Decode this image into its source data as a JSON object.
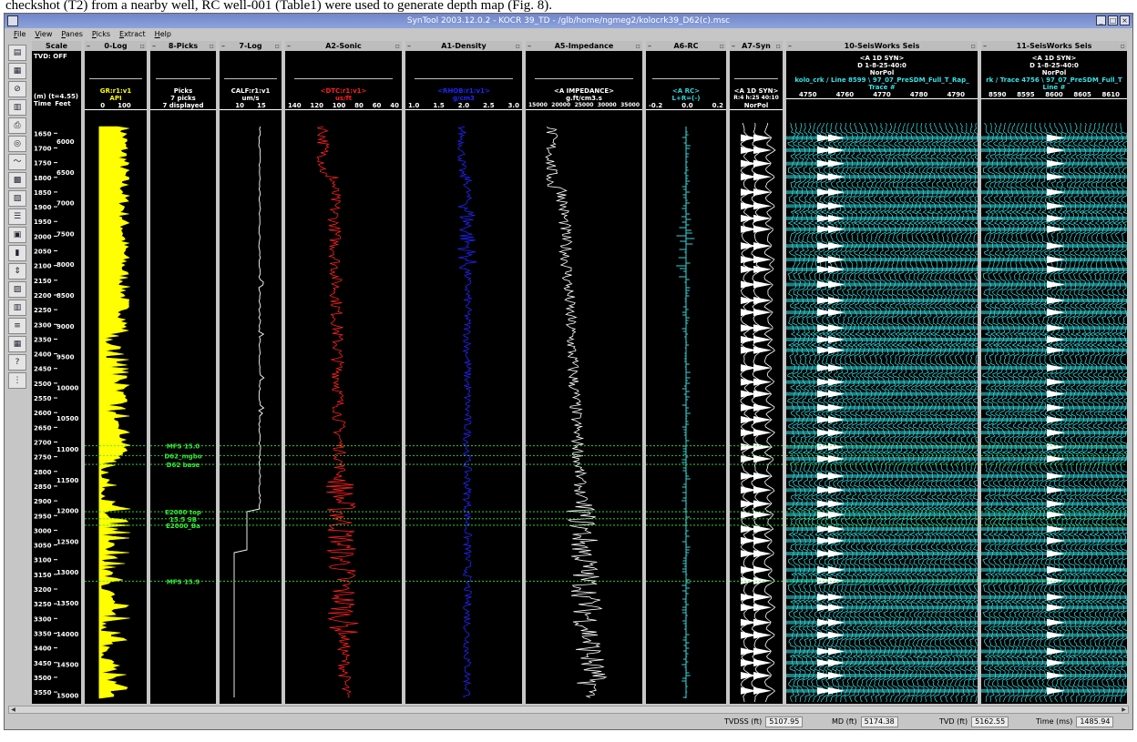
{
  "caption": "checkshot (T2) from a nearby well, RC well-001 (Table1) were used to generate depth map (Fig. 8).",
  "window": {
    "title": "SynTool 2003.12.0.2 - KOCR 39_TD - /glb/home/ngmeg2/kolocrk39_D62(c).msc"
  },
  "menu": [
    "File",
    "View",
    "Panes",
    "Picks",
    "Extract",
    "Help"
  ],
  "toolbar_icons": [
    "well-select-icon",
    "log-display-icon",
    "stop-icon",
    "grid-icon",
    "print-icon",
    "compass-icon",
    "curve-icon",
    "seismic-icon",
    "wavelet-icon",
    "table-icon",
    "synthetic-icon",
    "trace-icon",
    "stretch-icon",
    "hide-icon",
    "columns-icon",
    "lines-icon",
    "panel-icon",
    "question-icon",
    "track-edit-icon"
  ],
  "colors": {
    "gr": "#ffff00",
    "sonic": "#ff2020",
    "density": "#2323ff",
    "impedance": "#ffffff",
    "rc": "#33d8dc",
    "seismic": "#33e5e9",
    "picks": "#33ee33",
    "cali": "#ffffff",
    "panel_bg": "#000000"
  },
  "scale": {
    "title": "Scale",
    "tvd": "TVD: OFF",
    "units": "(m) (t=4.55)",
    "time_label": "Time",
    "depth_label": "Feet",
    "times": [
      "1650",
      "1700",
      "1750",
      "1800",
      "1850",
      "1900",
      "1950",
      "2000",
      "2050",
      "2100",
      "2150",
      "2200",
      "2250",
      "2300",
      "2350",
      "2400",
      "2450",
      "2500",
      "2550",
      "2600",
      "2650",
      "2700",
      "2750",
      "2800",
      "2850",
      "2900",
      "2950",
      "3000",
      "3050",
      "3100",
      "3150",
      "3200",
      "3250",
      "3300",
      "3350",
      "3400",
      "3450",
      "3500",
      "3550"
    ],
    "depths": [
      "6000",
      "6500",
      "7000",
      "7500",
      "8000",
      "8500",
      "9000",
      "9500",
      "10000",
      "10500",
      "11000",
      "11500",
      "12000",
      "12500",
      "13000",
      "13500",
      "14000",
      "14500",
      "15000"
    ]
  },
  "panes": [
    {
      "id": "log0",
      "title": "0-Log",
      "h1": "GR:r1:v1",
      "h2": "API",
      "ticks": [
        "0",
        "100"
      ]
    },
    {
      "id": "picks",
      "title": "8-Picks",
      "h1": "Picks",
      "h2": "7 picks",
      "h3": "7 displayed"
    },
    {
      "id": "log7",
      "title": "7-Log",
      "h1": "CALF:r1:v1",
      "h2": "um/s",
      "ticks": [
        "10",
        "15"
      ]
    },
    {
      "id": "sonic",
      "title": "A2-Sonic",
      "h1": "<DTC:r1:v1>",
      "h2": "us/ft",
      "ticks": [
        "140",
        "120",
        "100",
        "80",
        "60",
        "40"
      ]
    },
    {
      "id": "density",
      "title": "A1-Density",
      "h1": "<RHOB:r1:v1>",
      "h2": "g/cm3",
      "ticks": [
        "1.0",
        "1.5",
        "2.0",
        "2.5",
        "3.0"
      ]
    },
    {
      "id": "imp",
      "title": "A5-Impedance",
      "h1": "<A IMPEDANCE>",
      "h2": "g.ft/cm3.s",
      "ticks": [
        "15000",
        "20000",
        "25000",
        "30000",
        "35000"
      ]
    },
    {
      "id": "rc",
      "title": "A6-RC",
      "h1": "<A RC>",
      "h2": "L+R=(-)",
      "ticks": [
        "-0.2",
        "0.0",
        "0.2"
      ]
    },
    {
      "id": "syn",
      "title": "A7-Syn",
      "h1": "<A 1D SYN>",
      "h2": "R:4 h:25 40:10",
      "h3": "NorPol"
    },
    {
      "id": "s10",
      "title": "10-SeisWorks Seis",
      "h1": "<A 1D SYN>",
      "h2": "D 1-8-25-40:0",
      "h3": "NorPol",
      "h4": "kolo_crk / Line 8599 \\ 97_07_PreSDM_Full_T_Rap_",
      "h5": "Trace #",
      "ticks": [
        "4750",
        "4760",
        "4770",
        "4780",
        "4790"
      ]
    },
    {
      "id": "s11",
      "title": "11-SeisWorks Seis",
      "h1": "<A 1D SYN>",
      "h2": "D 1-8-25-40:0",
      "h3": "NorPol",
      "h4": "rk / Trace 4756 \\ 97_07_PreSDM_Full_T",
      "h5": "Line #",
      "ticks": [
        "8590",
        "8595",
        "8600",
        "8605",
        "8610"
      ]
    }
  ],
  "picks": [
    {
      "name": "MFS 15.0",
      "time": 2713
    },
    {
      "name": "D62_mgbo",
      "time": 2746
    },
    {
      "name": "D62 base",
      "time": 2776
    },
    {
      "name": "E2000 top",
      "time": 2937
    },
    {
      "name": "15.5 SB",
      "time": 2961
    },
    {
      "name": "E2000_Ba",
      "time": 2983
    },
    {
      "name": "MFS 15.9",
      "time": 3173
    }
  ],
  "status": {
    "tvdss_label": "TVDSS (ft)",
    "tvdss": "5107.95",
    "md_label": "MD (ft)",
    "md": "5174.38",
    "tvd_label": "TVD (ft)",
    "tvd": "5162.55",
    "time_label": "Time (ms)",
    "time": "1485.94"
  }
}
